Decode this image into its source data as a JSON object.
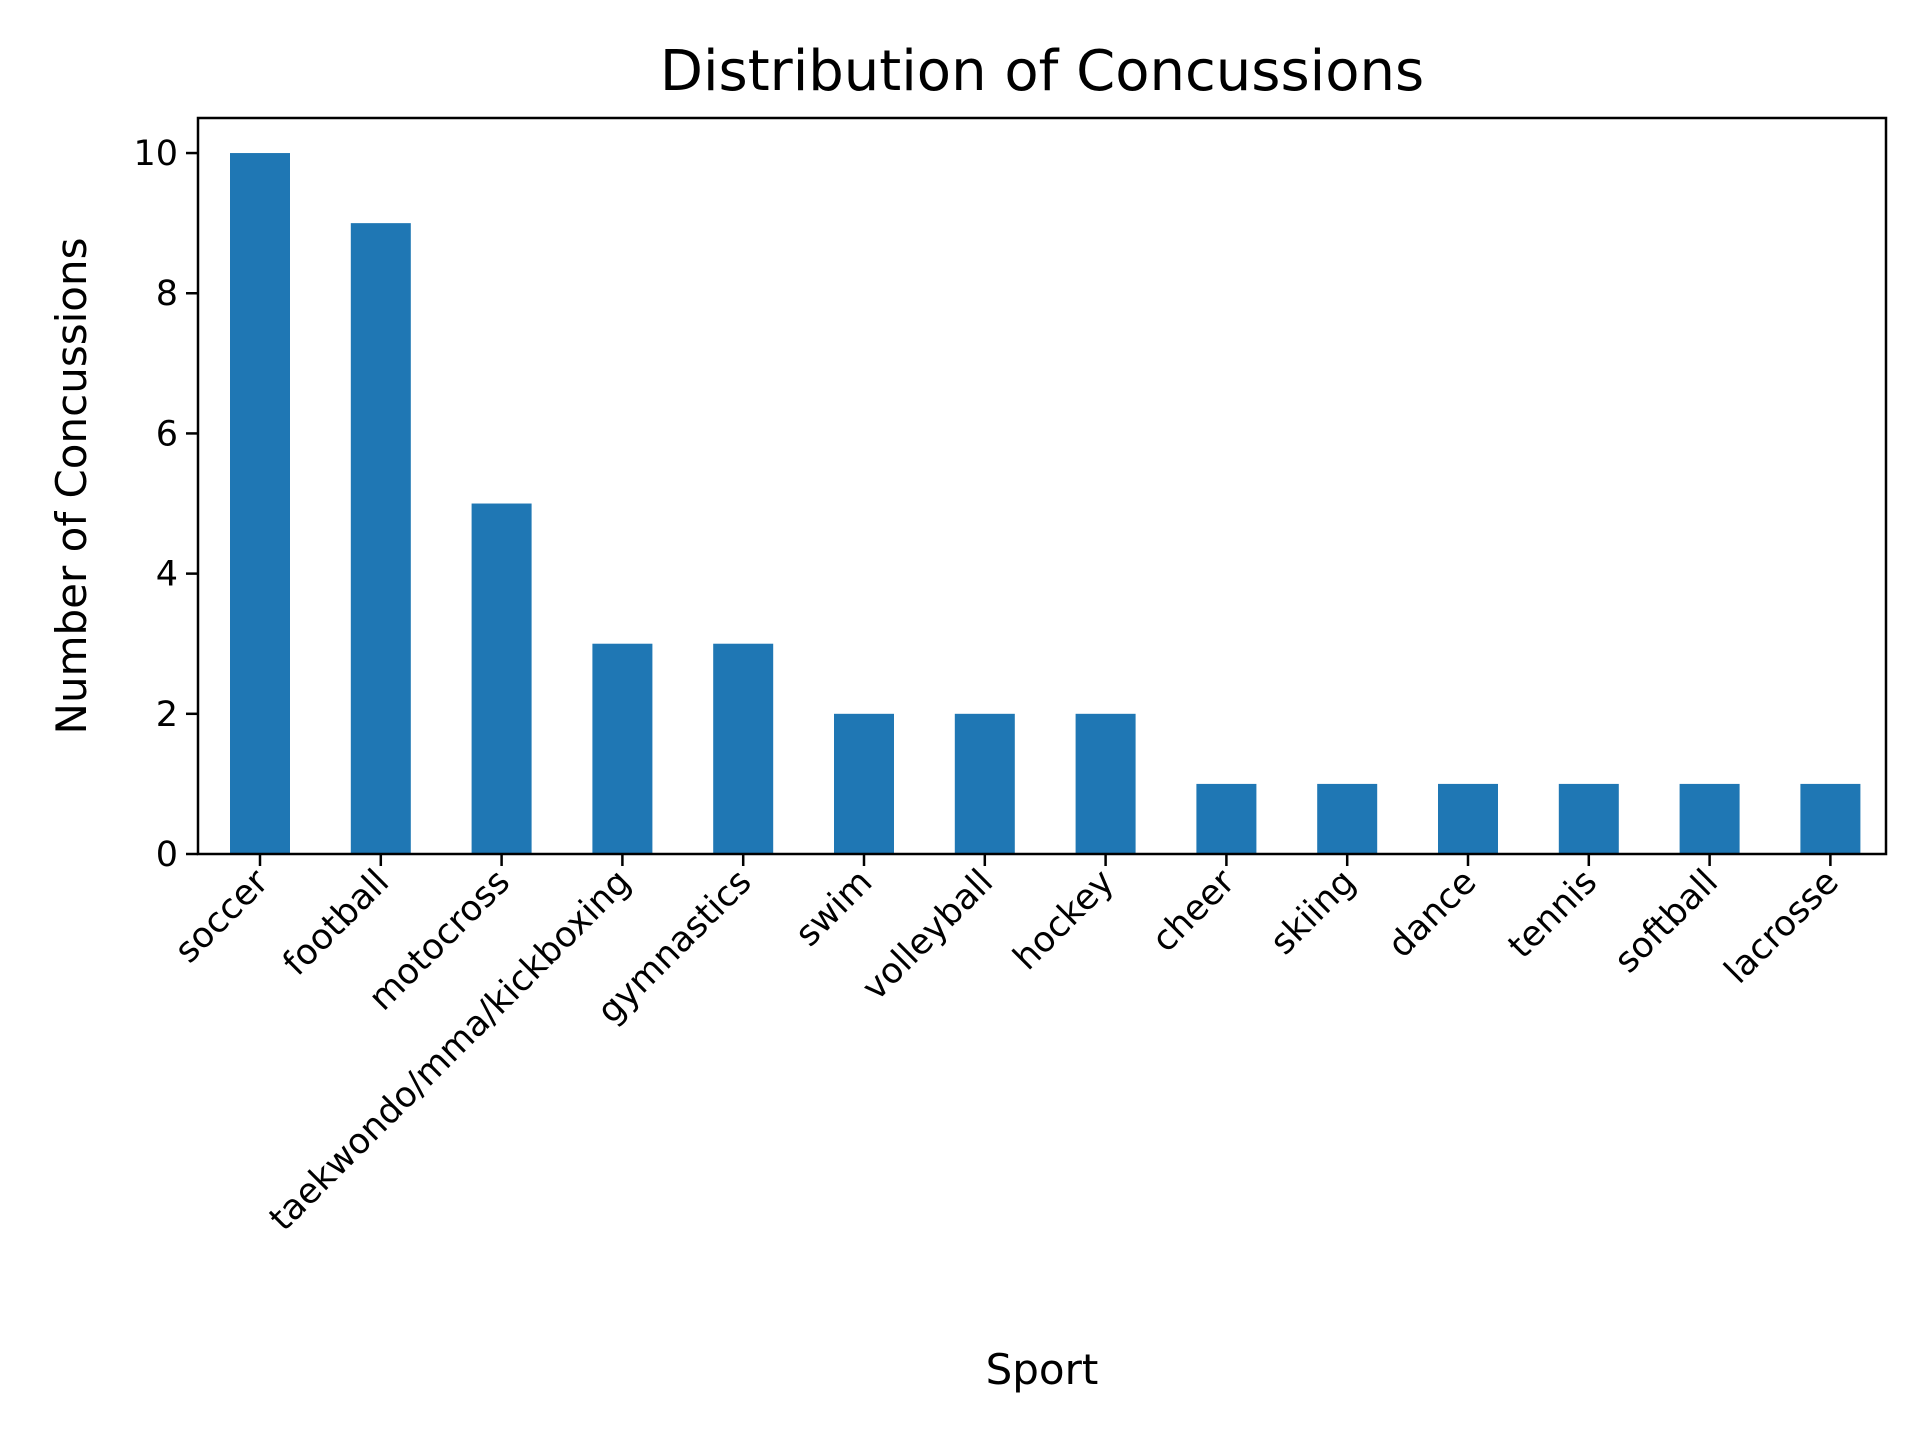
{
  "chart_data": {
    "type": "bar",
    "title": "Distribution of Concussions",
    "xlabel": "Sport",
    "ylabel": "Number of Concussions",
    "categories": [
      "soccer",
      "football",
      "motocross",
      "taekwondo/mma/kickboxing",
      "gymnastics",
      "swim",
      "volleyball",
      "hockey",
      "cheer",
      "skiing",
      "dance",
      "tennis",
      "softball",
      "lacrosse"
    ],
    "values": [
      10,
      9,
      5,
      3,
      3,
      2,
      2,
      2,
      1,
      1,
      1,
      1,
      1,
      1
    ],
    "ylim": [
      0,
      10.5
    ],
    "yticks": [
      0,
      2,
      4,
      6,
      8,
      10
    ],
    "grid": false,
    "bar_color": "#1f77b4"
  }
}
